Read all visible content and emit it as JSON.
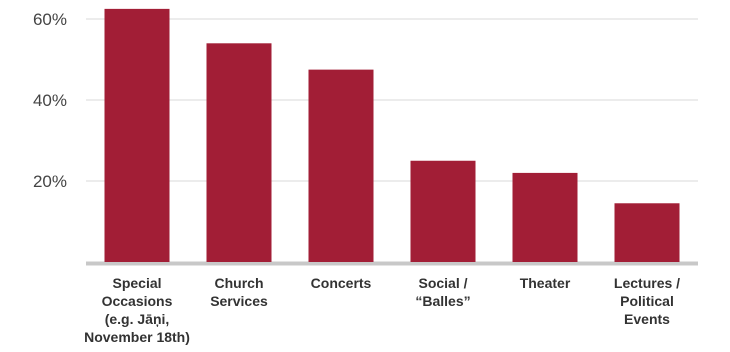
{
  "chart_data": {
    "type": "bar",
    "title": "",
    "xlabel": "",
    "ylabel": "",
    "categories": [
      [
        "Special",
        "Occasions",
        "(e.g. Jāņi,",
        "November 18th)"
      ],
      [
        "Church",
        "Services"
      ],
      [
        "Concerts"
      ],
      [
        "Social /",
        "“Balles”"
      ],
      [
        "Theater"
      ],
      [
        "Lectures /",
        "Political",
        "Events"
      ]
    ],
    "values": [
      62.5,
      54,
      47.5,
      25,
      22,
      14.5
    ],
    "ylim": [
      0,
      62
    ],
    "yticks": [
      20,
      40,
      60
    ],
    "ytick_labels": [
      "20%",
      "40%",
      "60%"
    ],
    "grid": true,
    "legend": "none",
    "colors": {
      "bar": "#a21e36",
      "grid": "#d9d9d9",
      "baseline": "#c8c8c8"
    }
  }
}
